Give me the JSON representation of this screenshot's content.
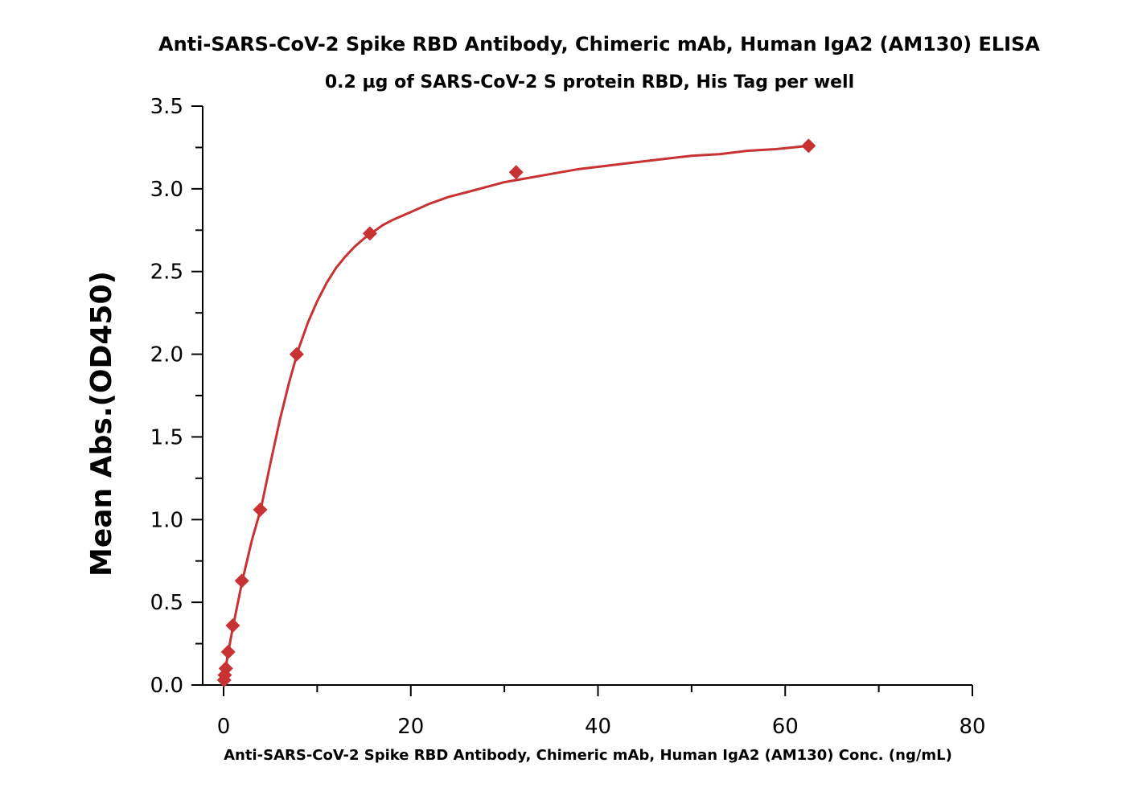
{
  "chart_data": {
    "type": "scatter",
    "title": "Anti-SARS-CoV-2 Spike RBD Antibody, Chimeric mAb, Human IgA2 (AM130) ELISA",
    "subtitle": "0.2 µg of SARS-CoV-2 S protein RBD, His Tag per well",
    "xlabel": "Anti-SARS-CoV-2 Spike RBD Antibody, Chimeric mAb, Human IgA2 (AM130) Conc. (ng/mL)",
    "ylabel": "Mean Abs.(OD450)",
    "xlim": [
      0,
      80
    ],
    "ylim": [
      0,
      3.5
    ],
    "x_ticks": [
      "0",
      "20",
      "40",
      "60",
      "80"
    ],
    "x_tick_values": [
      0,
      20,
      40,
      60,
      80
    ],
    "y_ticks": [
      "0.0",
      "0.5",
      "1.0",
      "1.5",
      "2.0",
      "2.5",
      "3.0",
      "3.5"
    ],
    "y_tick_values": [
      0,
      0.5,
      1.0,
      1.5,
      2.0,
      2.5,
      3.0,
      3.5
    ],
    "grid": false,
    "color": "#c83232",
    "series": [
      {
        "marker": "diamond",
        "x": [
          0.06,
          0.12,
          0.24,
          0.49,
          0.98,
          1.95,
          3.91,
          7.81,
          15.63,
          31.25,
          62.5
        ],
        "y": [
          0.03,
          0.06,
          0.1,
          0.2,
          0.36,
          0.63,
          1.06,
          2.0,
          2.73,
          3.1,
          3.26
        ]
      }
    ],
    "fit_curve": {
      "x": [
        0,
        0.5,
        1,
        2,
        3,
        4,
        5,
        6,
        7,
        8,
        9,
        10,
        11,
        12,
        13,
        14,
        15,
        16,
        17,
        18,
        20,
        22,
        24,
        26,
        28,
        30,
        32,
        35,
        38,
        41,
        44,
        47,
        50,
        53,
        56,
        59,
        62.5
      ],
      "y": [
        0.02,
        0.2,
        0.35,
        0.63,
        0.87,
        1.07,
        1.34,
        1.6,
        1.83,
        2.03,
        2.19,
        2.32,
        2.43,
        2.52,
        2.59,
        2.65,
        2.7,
        2.74,
        2.78,
        2.81,
        2.86,
        2.91,
        2.95,
        2.98,
        3.01,
        3.04,
        3.06,
        3.09,
        3.12,
        3.14,
        3.16,
        3.18,
        3.2,
        3.21,
        3.23,
        3.24,
        3.26
      ]
    }
  }
}
